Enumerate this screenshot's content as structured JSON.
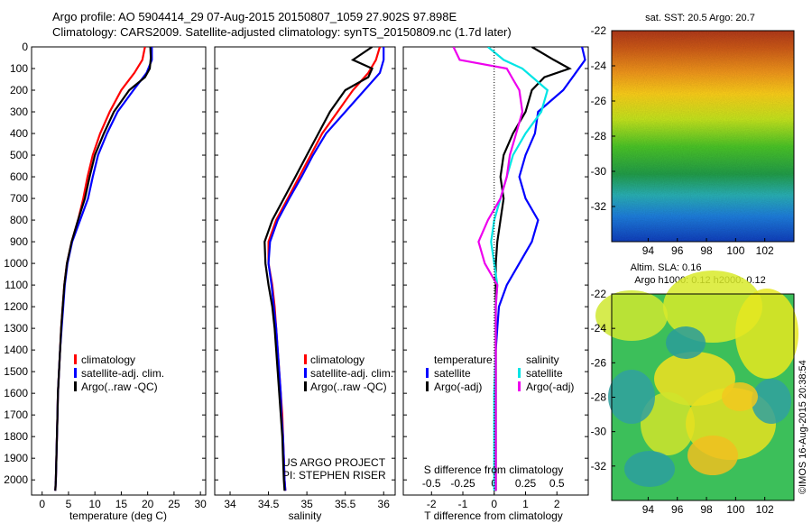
{
  "header": {
    "title_line1": "Argo profile: AO 5904414_29 07-Aug-2015 20150807_1059 27.902S 97.898E",
    "title_line2": "Climatology: CARS2009. Satellite-adjusted climatology: synTS_20150809.nc (1.7d later)"
  },
  "footer": {
    "project_line1": "US ARGO PROJECT",
    "project_line2": "PI: STEPHEN RISER",
    "credit": "©IMOS 16-Aug-2015 20:38:54"
  },
  "colors": {
    "climatology": "#ff0000",
    "satellite": "#0000ff",
    "argo": "#000000",
    "sat_salinity": "#00e5e5",
    "argo_salinity": "#ee00ee"
  },
  "chart_data": [
    {
      "id": "temperature",
      "type": "line",
      "xlabel": "temperature (deg C)",
      "xlim": [
        -2,
        31
      ],
      "ylim": [
        0,
        2070
      ],
      "xticks": [
        0,
        5,
        10,
        15,
        20,
        25,
        30
      ],
      "yticks": [
        0,
        100,
        200,
        300,
        400,
        500,
        600,
        700,
        800,
        900,
        1000,
        1100,
        1200,
        1300,
        1400,
        1500,
        1600,
        1700,
        1800,
        1900,
        2000
      ],
      "legend": [
        "climatology",
        "satellite-adj. clim.",
        "Argo(..raw -QC)"
      ],
      "series": [
        {
          "name": "climatology",
          "color": "#ff0000",
          "points": [
            [
              19.5,
              0
            ],
            [
              19.0,
              60
            ],
            [
              17.5,
              120
            ],
            [
              15,
              200
            ],
            [
              12.8,
              300
            ],
            [
              11,
              400
            ],
            [
              9.6,
              500
            ],
            [
              8.6,
              600
            ],
            [
              7.8,
              700
            ],
            [
              6.8,
              800
            ],
            [
              5.6,
              900
            ],
            [
              4.7,
              1000
            ],
            [
              4.2,
              1100
            ],
            [
              3.9,
              1200
            ],
            [
              3.6,
              1300
            ],
            [
              3.4,
              1400
            ],
            [
              3.2,
              1500
            ],
            [
              3.0,
              1600
            ],
            [
              2.9,
              1700
            ],
            [
              2.8,
              1800
            ],
            [
              2.7,
              1900
            ],
            [
              2.6,
              2000
            ],
            [
              2.5,
              2050
            ]
          ]
        },
        {
          "name": "satellite-adj. clim.",
          "color": "#0000ff",
          "points": [
            [
              20.8,
              0
            ],
            [
              20.8,
              60
            ],
            [
              19.8,
              120
            ],
            [
              17.3,
              200
            ],
            [
              14.3,
              300
            ],
            [
              12.3,
              400
            ],
            [
              10.6,
              500
            ],
            [
              9.6,
              600
            ],
            [
              8.7,
              700
            ],
            [
              7.2,
              800
            ],
            [
              5.7,
              900
            ],
            [
              4.8,
              1000
            ],
            [
              4.3,
              1100
            ],
            [
              4.0,
              1200
            ],
            [
              3.7,
              1300
            ],
            [
              3.4,
              1400
            ],
            [
              3.2,
              1500
            ],
            [
              3.0,
              1600
            ],
            [
              2.9,
              1700
            ],
            [
              2.8,
              1800
            ],
            [
              2.7,
              1900
            ],
            [
              2.6,
              2000
            ],
            [
              2.5,
              2050
            ]
          ]
        },
        {
          "name": "Argo(..raw -QC)",
          "color": "#000000",
          "points": [
            [
              20.5,
              0
            ],
            [
              20.6,
              50
            ],
            [
              20.4,
              100
            ],
            [
              19.5,
              140
            ],
            [
              16.5,
              200
            ],
            [
              13.6,
              300
            ],
            [
              11.7,
              400
            ],
            [
              10.0,
              500
            ],
            [
              9.0,
              600
            ],
            [
              8.1,
              700
            ],
            [
              6.8,
              800
            ],
            [
              5.6,
              900
            ],
            [
              4.7,
              1000
            ],
            [
              4.2,
              1100
            ],
            [
              3.9,
              1200
            ],
            [
              3.6,
              1300
            ],
            [
              3.4,
              1400
            ],
            [
              3.2,
              1500
            ],
            [
              3.0,
              1600
            ],
            [
              2.9,
              1700
            ],
            [
              2.8,
              1800
            ],
            [
              2.7,
              1900
            ],
            [
              2.6,
              2000
            ],
            [
              2.5,
              2050
            ]
          ]
        }
      ]
    },
    {
      "id": "salinity",
      "type": "line",
      "xlabel": "salinity",
      "xlim": [
        33.8,
        36.15
      ],
      "ylim": [
        0,
        2070
      ],
      "xticks": [
        34,
        34.5,
        35,
        35.5,
        36
      ],
      "legend": [
        "climatology",
        "satellite-adj. clim.",
        "Argo(..raw -QC)"
      ],
      "series": [
        {
          "name": "climatology",
          "color": "#ff0000",
          "points": [
            [
              35.95,
              0
            ],
            [
              35.9,
              60
            ],
            [
              35.8,
              120
            ],
            [
              35.6,
              200
            ],
            [
              35.4,
              300
            ],
            [
              35.2,
              400
            ],
            [
              35.05,
              500
            ],
            [
              34.9,
              600
            ],
            [
              34.75,
              700
            ],
            [
              34.6,
              800
            ],
            [
              34.5,
              900
            ],
            [
              34.5,
              1000
            ],
            [
              34.55,
              1100
            ],
            [
              34.58,
              1200
            ],
            [
              34.6,
              1300
            ],
            [
              34.62,
              1400
            ],
            [
              34.64,
              1500
            ],
            [
              34.66,
              1600
            ],
            [
              34.68,
              1700
            ],
            [
              34.69,
              1800
            ],
            [
              34.7,
              1900
            ],
            [
              34.71,
              2000
            ],
            [
              34.72,
              2050
            ]
          ]
        },
        {
          "name": "satellite-adj. clim.",
          "color": "#0000ff",
          "points": [
            [
              36.0,
              0
            ],
            [
              36.0,
              60
            ],
            [
              35.95,
              120
            ],
            [
              35.75,
              200
            ],
            [
              35.5,
              300
            ],
            [
              35.25,
              400
            ],
            [
              35.08,
              500
            ],
            [
              34.93,
              600
            ],
            [
              34.77,
              700
            ],
            [
              34.62,
              800
            ],
            [
              34.52,
              900
            ],
            [
              34.5,
              1000
            ],
            [
              34.54,
              1100
            ],
            [
              34.57,
              1200
            ],
            [
              34.6,
              1300
            ],
            [
              34.62,
              1400
            ],
            [
              34.64,
              1500
            ],
            [
              34.66,
              1600
            ],
            [
              34.67,
              1700
            ],
            [
              34.69,
              1800
            ],
            [
              34.7,
              1900
            ],
            [
              34.71,
              2000
            ],
            [
              34.72,
              2050
            ]
          ]
        },
        {
          "name": "Argo(..raw -QC)",
          "color": "#000000",
          "points": [
            [
              35.85,
              0
            ],
            [
              35.6,
              60
            ],
            [
              35.85,
              100
            ],
            [
              35.8,
              140
            ],
            [
              35.5,
              200
            ],
            [
              35.3,
              300
            ],
            [
              35.15,
              400
            ],
            [
              35.0,
              500
            ],
            [
              34.85,
              600
            ],
            [
              34.7,
              700
            ],
            [
              34.55,
              800
            ],
            [
              34.45,
              900
            ],
            [
              34.46,
              1000
            ],
            [
              34.5,
              1100
            ],
            [
              34.55,
              1200
            ],
            [
              34.58,
              1300
            ],
            [
              34.6,
              1400
            ],
            [
              34.62,
              1500
            ],
            [
              34.64,
              1600
            ],
            [
              34.66,
              1700
            ],
            [
              34.68,
              1800
            ],
            [
              34.69,
              1900
            ],
            [
              34.7,
              2000
            ],
            [
              34.71,
              2050
            ]
          ]
        }
      ]
    },
    {
      "id": "difference",
      "type": "line",
      "xlabel": "T difference from climatology",
      "top_label": "S difference from climatology",
      "xlim": [
        -2.9,
        3.0
      ],
      "ylim": [
        0,
        2070
      ],
      "xticks": [
        -2,
        -1,
        0,
        1,
        2
      ],
      "top_ticks": [
        "-0.5",
        "-0.25",
        "0",
        "0.25",
        "0.5"
      ],
      "legend_temperature_title": "temperature",
      "legend_salinity_title": "salinity",
      "legend": [
        "satellite",
        "Argo(-adj)",
        "satellite",
        "Argo(-adj)"
      ],
      "series": [
        {
          "name": "satellite",
          "quantity": "temperature",
          "color": "#0000ff",
          "points": [
            [
              2.8,
              0
            ],
            [
              2.9,
              60
            ],
            [
              2.6,
              120
            ],
            [
              2.2,
              200
            ],
            [
              1.4,
              300
            ],
            [
              1.3,
              400
            ],
            [
              1.0,
              500
            ],
            [
              0.8,
              600
            ],
            [
              1.0,
              700
            ],
            [
              1.4,
              800
            ],
            [
              1.2,
              900
            ],
            [
              0.8,
              1000
            ],
            [
              0.4,
              1100
            ],
            [
              0.15,
              1200
            ],
            [
              0.1,
              1300
            ],
            [
              0.05,
              1400
            ],
            [
              0.05,
              1500
            ],
            [
              0.05,
              1600
            ],
            [
              0.05,
              1800
            ],
            [
              0.05,
              2000
            ],
            [
              0.05,
              2050
            ]
          ]
        },
        {
          "name": "Argo(-adj)",
          "quantity": "temperature",
          "color": "#000000",
          "points": [
            [
              1.2,
              0
            ],
            [
              1.9,
              60
            ],
            [
              2.4,
              100
            ],
            [
              1.6,
              140
            ],
            [
              1.2,
              200
            ],
            [
              1.0,
              300
            ],
            [
              0.6,
              400
            ],
            [
              0.3,
              500
            ],
            [
              0.2,
              600
            ],
            [
              0.3,
              700
            ],
            [
              0.2,
              800
            ],
            [
              0.1,
              900
            ],
            [
              0.05,
              1000
            ],
            [
              0.05,
              1200
            ],
            [
              0.05,
              1400
            ],
            [
              0.05,
              1600
            ],
            [
              0.05,
              1800
            ],
            [
              0.05,
              2000
            ],
            [
              0.05,
              2050
            ]
          ]
        },
        {
          "name": "satellite",
          "quantity": "salinity",
          "color": "#00e5e5",
          "points": [
            [
              -0.2,
              0
            ],
            [
              0.3,
              60
            ],
            [
              0.9,
              100
            ],
            [
              1.3,
              150
            ],
            [
              1.7,
              200
            ],
            [
              1.5,
              300
            ],
            [
              1.0,
              400
            ],
            [
              0.6,
              500
            ],
            [
              0.4,
              600
            ],
            [
              0.2,
              700
            ],
            [
              0.0,
              800
            ],
            [
              -0.1,
              900
            ],
            [
              0.0,
              1000
            ],
            [
              0.1,
              1100
            ],
            [
              0.05,
              1200
            ],
            [
              0.05,
              1400
            ],
            [
              0.0,
              1600
            ],
            [
              0.0,
              1800
            ],
            [
              0.0,
              2000
            ],
            [
              0.0,
              2050
            ]
          ]
        },
        {
          "name": "Argo(-adj)",
          "quantity": "salinity",
          "color": "#ee00ee",
          "points": [
            [
              -1.3,
              0
            ],
            [
              -1.1,
              60
            ],
            [
              0.4,
              100
            ],
            [
              0.6,
              150
            ],
            [
              0.8,
              200
            ],
            [
              0.9,
              300
            ],
            [
              0.7,
              400
            ],
            [
              0.5,
              500
            ],
            [
              0.4,
              600
            ],
            [
              0.2,
              700
            ],
            [
              -0.2,
              800
            ],
            [
              -0.5,
              900
            ],
            [
              -0.3,
              1000
            ],
            [
              0.1,
              1100
            ],
            [
              0.05,
              1200
            ],
            [
              0.05,
              1400
            ],
            [
              0.05,
              1600
            ],
            [
              0.05,
              1800
            ],
            [
              0.05,
              2000
            ],
            [
              0.05,
              2050
            ]
          ]
        }
      ]
    },
    {
      "id": "sst_map",
      "type": "heatmap",
      "title": "sat. SST: 20.5 Argo: 20.7",
      "xlim": [
        91.5,
        104
      ],
      "ylim": [
        -34,
        -22
      ],
      "xticks": [
        94,
        96,
        98,
        100,
        102
      ],
      "yticks": [
        -22,
        -24,
        -26,
        -28,
        -30,
        -32
      ]
    },
    {
      "id": "sla_map",
      "type": "heatmap",
      "title_line1": "Altim. SLA: 0.16",
      "title_line2": "Argo h1000: 0.12 h2000: 0.12",
      "xlim": [
        91.5,
        104
      ],
      "ylim": [
        -34,
        -22
      ],
      "xticks": [
        94,
        96,
        98,
        100,
        102
      ],
      "yticks": [
        -22,
        -24,
        -26,
        -28,
        -30,
        -32
      ]
    }
  ]
}
